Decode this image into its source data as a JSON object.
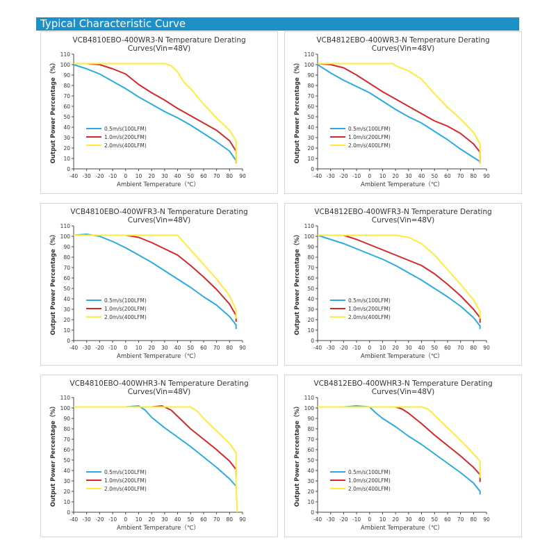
{
  "header": {
    "title": "Typical Characteristic Curve"
  },
  "colors": {
    "header_bg": "#1f8fc8",
    "series": [
      "#29abe2",
      "#d62728",
      "#ffeb3b"
    ]
  },
  "chart_data": [
    {
      "type": "line",
      "title_line1": "VCB4810EBO-400WR3-N Temperature Derating",
      "title_line2": "Curves(Vin=48V)",
      "xlabel": "Ambient Temperature（℃）",
      "ylabel": "Output Power Percentage（%）",
      "xlim": [
        -40,
        90
      ],
      "ylim": [
        0,
        110
      ],
      "xticks": [
        -40,
        -30,
        -20,
        -10,
        0,
        10,
        20,
        30,
        40,
        50,
        60,
        70,
        80,
        90
      ],
      "yticks": [
        0,
        10,
        20,
        30,
        40,
        50,
        60,
        70,
        80,
        90,
        100,
        110
      ],
      "legend": "lower-left",
      "series": [
        {
          "name": "0.5m/s(100LFM)",
          "x": [
            -40,
            -30,
            -20,
            -10,
            0,
            10,
            20,
            30,
            40,
            50,
            60,
            70,
            80,
            85,
            85
          ],
          "y": [
            100,
            96,
            91,
            84,
            77,
            69,
            62,
            55,
            49,
            42,
            34,
            26,
            17,
            8,
            5
          ]
        },
        {
          "name": "1.0m/s(200LFM)",
          "x": [
            -40,
            -30,
            -20,
            -10,
            0,
            10,
            20,
            30,
            40,
            50,
            60,
            70,
            80,
            85,
            85
          ],
          "y": [
            101,
            101,
            100,
            96,
            91,
            81,
            73,
            66,
            58,
            51,
            44,
            37,
            27,
            17,
            5
          ]
        },
        {
          "name": "2.0m/s(400LFM)",
          "x": [
            -40,
            -20,
            0,
            20,
            30,
            35,
            40,
            45,
            50,
            60,
            70,
            80,
            85,
            85
          ],
          "y": [
            101,
            101,
            101,
            101,
            101,
            99,
            93,
            83,
            77,
            62,
            49,
            37,
            27,
            5
          ]
        }
      ]
    },
    {
      "type": "line",
      "title_line1": "VCB4812EBO-400WR3-N Temperature Derating",
      "title_line2": "Curves(Vin=48V)",
      "xlabel": "Ambient Temperature（℃）",
      "ylabel": "Output Power Percentage（%）",
      "xlim": [
        -40,
        90
      ],
      "ylim": [
        0,
        110
      ],
      "xticks": [
        -40,
        -30,
        -20,
        -10,
        0,
        10,
        20,
        30,
        40,
        50,
        60,
        70,
        80,
        90
      ],
      "yticks": [
        0,
        10,
        20,
        30,
        40,
        50,
        60,
        70,
        80,
        90,
        100,
        110
      ],
      "legend": "lower-left",
      "series": [
        {
          "name": "0.5m/s(100LFM)",
          "x": [
            -40,
            -30,
            -20,
            -10,
            0,
            10,
            20,
            30,
            40,
            50,
            60,
            70,
            80,
            85,
            85
          ],
          "y": [
            100,
            92,
            85,
            79,
            73,
            65,
            57,
            50,
            44,
            36,
            28,
            19,
            11,
            7,
            5
          ]
        },
        {
          "name": "1.0m/s(200LFM)",
          "x": [
            -40,
            -30,
            -20,
            -10,
            0,
            10,
            20,
            30,
            40,
            50,
            60,
            70,
            80,
            85,
            85
          ],
          "y": [
            101,
            100,
            97,
            90,
            82,
            74,
            67,
            60,
            53,
            46,
            41,
            34,
            24,
            16,
            5
          ]
        },
        {
          "name": "2.0m/s(400LFM)",
          "x": [
            -40,
            -20,
            0,
            18,
            20,
            30,
            40,
            50,
            60,
            70,
            80,
            85,
            85
          ],
          "y": [
            101,
            101,
            101,
            101,
            99,
            94,
            86,
            72,
            59,
            48,
            35,
            24,
            5
          ]
        }
      ]
    },
    {
      "type": "line",
      "title_line1": "VCB4810EBO-400WFR3-N Temperature Derating",
      "title_line2": "Curves(Vin=48V)",
      "xlabel": "Ambient Temperature（℃）",
      "ylabel": "Output Power Percentage（%）",
      "xlim": [
        -40,
        90
      ],
      "ylim": [
        0,
        110
      ],
      "xticks": [
        -40,
        -30,
        -20,
        -10,
        0,
        10,
        20,
        30,
        40,
        50,
        60,
        70,
        80,
        90
      ],
      "yticks": [
        0,
        10,
        20,
        30,
        40,
        50,
        60,
        70,
        80,
        90,
        100,
        110
      ],
      "legend": "lower-left",
      "series": [
        {
          "name": "0.5m/s(100LFM)",
          "x": [
            -40,
            -30,
            -20,
            -10,
            0,
            10,
            20,
            30,
            40,
            50,
            60,
            70,
            80,
            85,
            85
          ],
          "y": [
            101,
            102,
            100,
            95,
            89,
            82,
            75,
            67,
            59,
            51,
            42,
            34,
            23,
            15,
            11
          ]
        },
        {
          "name": "1.0m/s(200LFM)",
          "x": [
            -40,
            -20,
            0,
            10,
            20,
            30,
            40,
            50,
            60,
            70,
            80,
            85,
            85
          ],
          "y": [
            101,
            101,
            101,
            99,
            94,
            88,
            82,
            72,
            61,
            49,
            35,
            24,
            18
          ]
        },
        {
          "name": "2.0m/s(400LFM)",
          "x": [
            -40,
            -20,
            0,
            20,
            30,
            40,
            45,
            50,
            60,
            70,
            80,
            85,
            85
          ],
          "y": [
            101,
            101,
            101,
            101,
            101,
            101,
            94,
            87,
            73,
            59,
            43,
            29,
            21
          ]
        }
      ]
    },
    {
      "type": "line",
      "title_line1": "VCB4812EBO-400WFR3-N Temperature Derating",
      "title_line2": "Curves(Vin=48V)",
      "xlabel": "Ambient Temperature（℃）",
      "ylabel": "Output Power Percentage（%）",
      "xlim": [
        -40,
        90
      ],
      "ylim": [
        0,
        110
      ],
      "xticks": [
        -40,
        -30,
        -20,
        -10,
        0,
        10,
        20,
        30,
        40,
        50,
        60,
        70,
        80,
        90
      ],
      "yticks": [
        0,
        10,
        20,
        30,
        40,
        50,
        60,
        70,
        80,
        90,
        100,
        110
      ],
      "legend": "lower-left",
      "series": [
        {
          "name": "0.5m/s(100LFM)",
          "x": [
            -40,
            -30,
            -20,
            -10,
            0,
            10,
            20,
            30,
            40,
            50,
            60,
            70,
            80,
            85,
            85
          ],
          "y": [
            101,
            97,
            93,
            88,
            83,
            78,
            72,
            65,
            58,
            50,
            42,
            33,
            22,
            14,
            11
          ]
        },
        {
          "name": "1.0m/s(200LFM)",
          "x": [
            -40,
            -30,
            -20,
            -10,
            0,
            10,
            20,
            30,
            40,
            50,
            60,
            70,
            80,
            85,
            85
          ],
          "y": [
            101,
            101,
            101,
            97,
            92,
            87,
            82,
            77,
            72,
            64,
            54,
            43,
            30,
            22,
            17
          ]
        },
        {
          "name": "2.0m/s(400LFM)",
          "x": [
            -40,
            -20,
            0,
            20,
            30,
            40,
            50,
            60,
            70,
            80,
            85,
            85
          ],
          "y": [
            101,
            101,
            101,
            101,
            99,
            93,
            82,
            68,
            54,
            39,
            28,
            21
          ]
        }
      ]
    },
    {
      "type": "line",
      "title_line1": "VCB4810EBO-400WHR3-N Temperature Derating",
      "title_line2": "Curves(Vin=48V)",
      "xlabel": "Ambient Temperature（℃）",
      "ylabel": "Output Power Percentage（%）",
      "xlim": [
        -40,
        90
      ],
      "ylim": [
        0,
        110
      ],
      "xticks": [
        -40,
        -30,
        -20,
        -10,
        0,
        10,
        20,
        30,
        40,
        50,
        60,
        70,
        80,
        90
      ],
      "yticks": [
        0,
        10,
        20,
        30,
        40,
        50,
        60,
        70,
        80,
        90,
        100,
        110
      ],
      "legend": "lower-left",
      "series": [
        {
          "name": "0.5m/s(100LFM)",
          "x": [
            -40,
            -20,
            0,
            10,
            15,
            20,
            30,
            40,
            50,
            60,
            70,
            80,
            85,
            85
          ],
          "y": [
            101,
            101,
            101,
            102,
            98,
            91,
            81,
            72,
            63,
            53,
            43,
            32,
            25,
            22
          ]
        },
        {
          "name": "1.0m/s(200LFM)",
          "x": [
            -40,
            -20,
            0,
            20,
            28,
            35,
            40,
            50,
            60,
            70,
            80,
            85,
            85
          ],
          "y": [
            101,
            101,
            101,
            101,
            102,
            98,
            92,
            80,
            70,
            60,
            49,
            41,
            35
          ]
        },
        {
          "name": "2.0m/s(400LFM)",
          "x": [
            -40,
            -20,
            0,
            20,
            40,
            50,
            55,
            60,
            70,
            80,
            85,
            85,
            86
          ],
          "y": [
            101,
            101,
            101,
            101,
            101,
            101,
            97,
            90,
            78,
            66,
            57,
            23,
            0
          ]
        }
      ]
    },
    {
      "type": "line",
      "title_line1": "VCB4812EBO-400WHR3-N Temperature Derating",
      "title_line2": "Curves(Vin=48V)",
      "xlabel": "Ambient Temperature（℃）",
      "ylabel": "Output Power Percentage（%）",
      "xlim": [
        -40,
        90
      ],
      "ylim": [
        0,
        110
      ],
      "xticks": [
        -40,
        -30,
        -20,
        -10,
        0,
        10,
        20,
        30,
        40,
        50,
        60,
        70,
        80,
        90
      ],
      "yticks": [
        0,
        10,
        20,
        30,
        40,
        50,
        60,
        70,
        80,
        90,
        100,
        110
      ],
      "legend": "lower-left",
      "series": [
        {
          "name": "0.5m/s(100LFM)",
          "x": [
            -40,
            -20,
            -10,
            0,
            5,
            10,
            20,
            30,
            40,
            50,
            60,
            70,
            80,
            85,
            85
          ],
          "y": [
            101,
            101,
            102,
            101,
            95,
            90,
            82,
            73,
            65,
            56,
            47,
            38,
            28,
            20,
            17
          ]
        },
        {
          "name": "1.0m/s(200LFM)",
          "x": [
            -40,
            -20,
            0,
            10,
            20,
            25,
            30,
            40,
            50,
            60,
            70,
            80,
            85,
            85
          ],
          "y": [
            101,
            101,
            101,
            101,
            101,
            99,
            95,
            85,
            74,
            64,
            54,
            43,
            36,
            29
          ]
        },
        {
          "name": "2.0m/s(400LFM)",
          "x": [
            -40,
            -20,
            0,
            20,
            40,
            45,
            50,
            60,
            70,
            80,
            85,
            85
          ],
          "y": [
            101,
            101,
            101,
            101,
            101,
            99,
            93,
            81,
            69,
            56,
            49,
            33
          ]
        }
      ]
    }
  ]
}
